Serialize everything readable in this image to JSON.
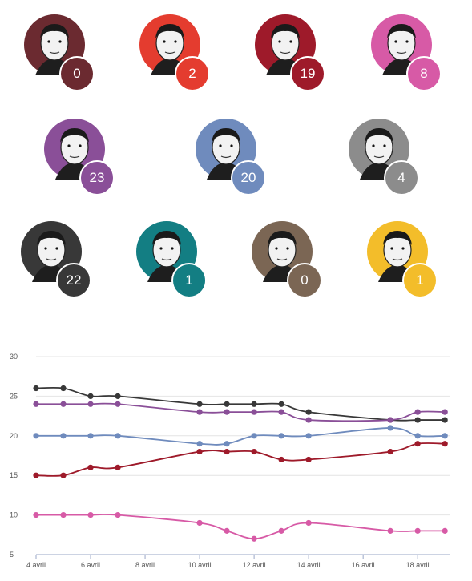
{
  "candidates": [
    {
      "value": "0",
      "color": "#6b2a30"
    },
    {
      "value": "2",
      "color": "#e43c2f"
    },
    {
      "value": "19",
      "color": "#9e1a2a"
    },
    {
      "value": "8",
      "color": "#d75aa6"
    },
    {
      "value": "23",
      "color": "#8a4f98"
    },
    {
      "value": "20",
      "color": "#6f8bbd"
    },
    {
      "value": "4",
      "color": "#8c8c8c"
    },
    {
      "value": "22",
      "color": "#383838"
    },
    {
      "value": "1",
      "color": "#137e83"
    },
    {
      "value": "0",
      "color": "#7b6654"
    },
    {
      "value": "1",
      "color": "#f3bd2a"
    }
  ],
  "chart_data": {
    "type": "line",
    "title": "",
    "xlabel": "",
    "ylabel": "",
    "ylim": [
      5,
      30
    ],
    "yticks": [
      "5",
      "10",
      "15",
      "20",
      "25",
      "30"
    ],
    "x": [
      4,
      5,
      6,
      7,
      10,
      11,
      12,
      13,
      14,
      17,
      18,
      19
    ],
    "xticks": [
      "4 avril",
      "6 avril",
      "8 avril",
      "10 avril",
      "12 avril",
      "14 avril",
      "16 avril",
      "18 avril"
    ],
    "grid": true,
    "series": [
      {
        "color": "#383838",
        "values": [
          26,
          26,
          25,
          25,
          24,
          24,
          24,
          24,
          23,
          22,
          22,
          22
        ]
      },
      {
        "color": "#8a4f98",
        "values": [
          24,
          24,
          24,
          24,
          23,
          23,
          23,
          23,
          22,
          22,
          23,
          23
        ]
      },
      {
        "color": "#6f8bbd",
        "values": [
          20,
          20,
          20,
          20,
          19,
          19,
          20,
          20,
          20,
          21,
          20,
          20
        ]
      },
      {
        "color": "#9e1a2a",
        "values": [
          15,
          15,
          16,
          16,
          18,
          18,
          18,
          17,
          17,
          18,
          19,
          19
        ]
      },
      {
        "color": "#d75aa6",
        "values": [
          10,
          10,
          10,
          10,
          9,
          8,
          7,
          8,
          9,
          8,
          8,
          8
        ]
      }
    ]
  }
}
